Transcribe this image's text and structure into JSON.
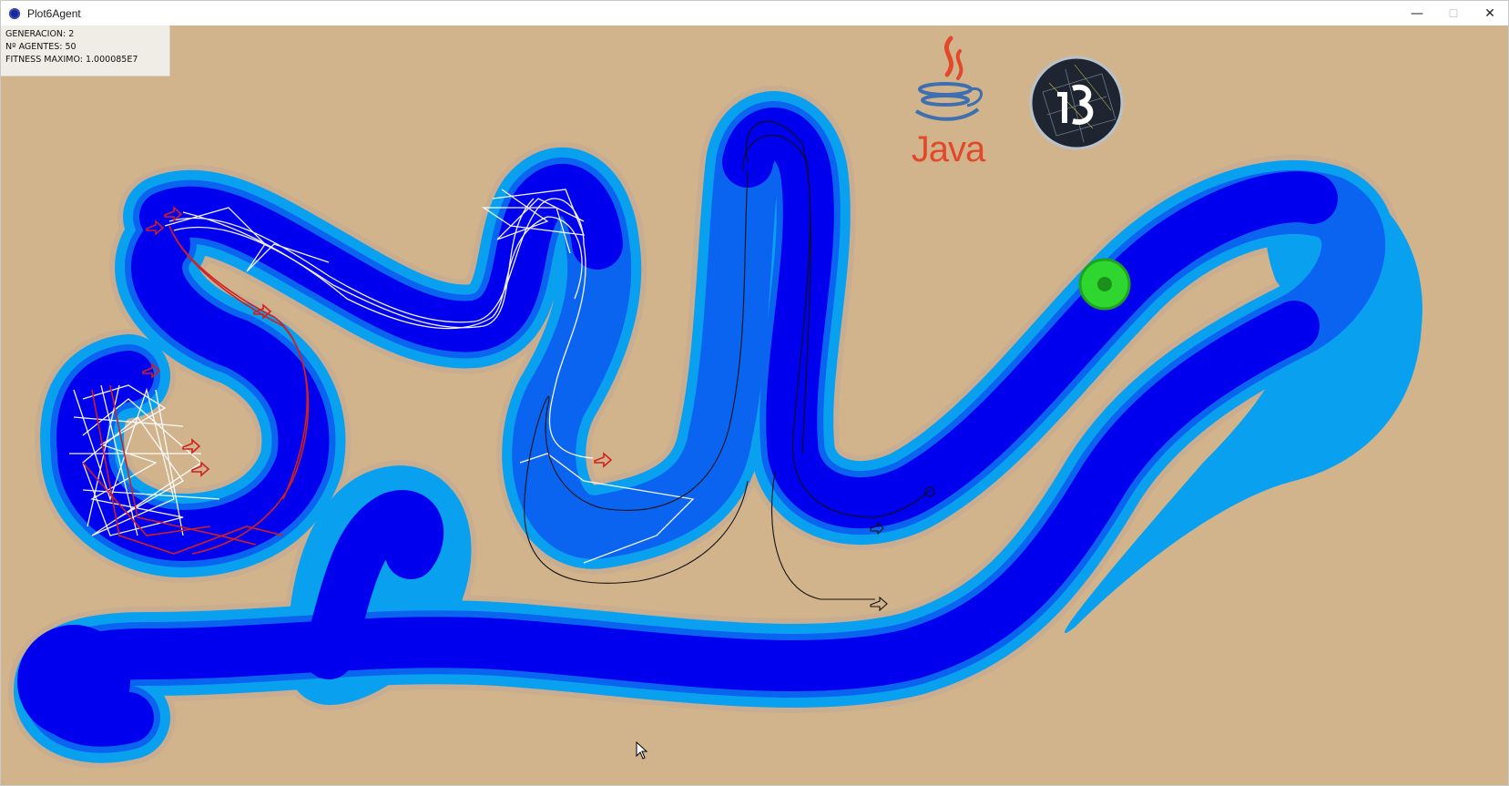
{
  "window": {
    "title": "Plot6Agent",
    "controls": {
      "minimize": "—",
      "maximize": "☐",
      "close": "✕"
    }
  },
  "stats": {
    "generation": "GENERACION: 2",
    "agents": "Nº AGENTES: 50",
    "max_fitness": "FITNESS MAXIMO: 1.000085E7"
  },
  "logos": {
    "java": "Java",
    "processing": "P3"
  },
  "colors": {
    "ground": "#d2b48c",
    "track_dark": "#0000ef",
    "track_mid": "#0a64f0",
    "track_light": "#0aa0f0",
    "agent_red": "#d02020",
    "agent_white": "#ffffff",
    "goal_green": "#2fd62f"
  },
  "icons": [
    "app-icon",
    "minimize-icon",
    "maximize-icon",
    "close-icon",
    "java-logo-icon",
    "processing-logo-icon",
    "goal-marker-icon",
    "mouse-cursor-icon"
  ]
}
